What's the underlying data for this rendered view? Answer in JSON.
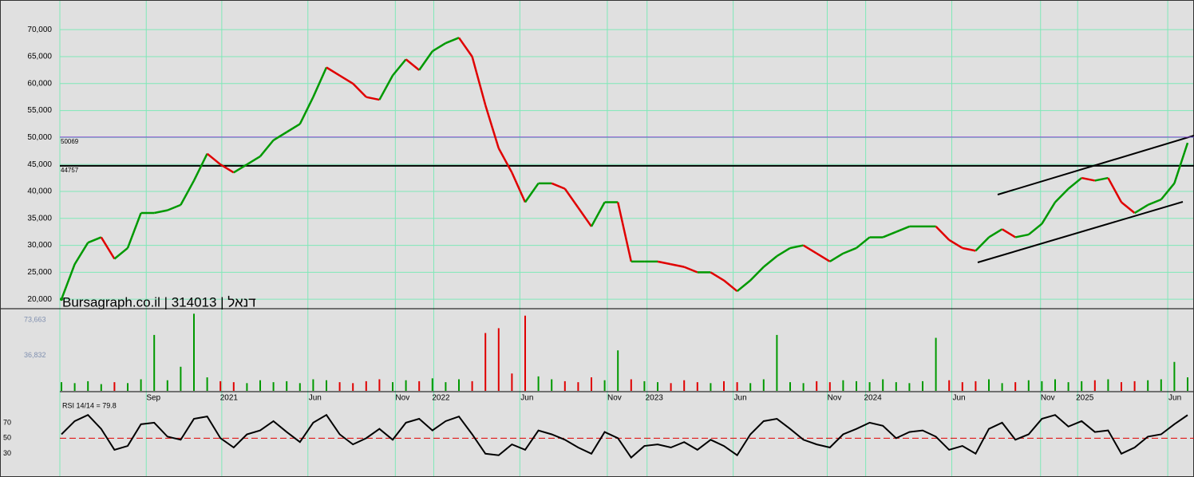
{
  "chart_data": {
    "type": "candle-line",
    "title": "Bursagraph.co.il | 314013 | דנאל",
    "up_color": "#009900",
    "down_color": "#e00000",
    "grid_color": "#7fe8b8",
    "values": [
      20000,
      26500,
      30500,
      31500,
      27500,
      29500,
      36000,
      36000,
      36500,
      37500,
      42000,
      47000,
      45000,
      43500,
      45000,
      46500,
      49500,
      51000,
      52500,
      57500,
      63000,
      61500,
      60000,
      57500,
      57000,
      61500,
      64500,
      62500,
      66000,
      67500,
      68500,
      65000,
      56000,
      48000,
      43500,
      38000,
      41500,
      41500,
      40500,
      37000,
      33500,
      38000,
      38000,
      27000,
      27000,
      27000,
      26500,
      26000,
      25000,
      25000,
      23500,
      21500,
      23500,
      26000,
      28000,
      29500,
      30000,
      28500,
      27000,
      28500,
      29500,
      31500,
      31500,
      32500,
      33500,
      33500,
      33500,
      31000,
      29500,
      29000,
      31500,
      33000,
      31500,
      32000,
      34000,
      38000,
      40500,
      42500,
      42000,
      42500,
      38000,
      36000,
      37500,
      38500,
      41500,
      49000
    ],
    "xlim": [
      0,
      85
    ],
    "xticks": [
      {
        "value": 6.4,
        "label": "Sep"
      },
      {
        "value": 12.1,
        "label": "2021"
      },
      {
        "value": 18.6,
        "label": "Jun"
      },
      {
        "value": 25.2,
        "label": "Nov"
      },
      {
        "value": 28.1,
        "label": "2022"
      },
      {
        "value": 34.6,
        "label": "Jun"
      },
      {
        "value": 41.2,
        "label": "Nov"
      },
      {
        "value": 44.2,
        "label": "2023"
      },
      {
        "value": 50.7,
        "label": "Jun"
      },
      {
        "value": 57.8,
        "label": "Nov"
      },
      {
        "value": 60.7,
        "label": "2024"
      },
      {
        "value": 67.2,
        "label": "Jun"
      },
      {
        "value": 73.9,
        "label": "Nov"
      },
      {
        "value": 76.7,
        "label": "2025"
      },
      {
        "value": 83.5,
        "label": "Jun"
      }
    ],
    "ylim": [
      18400,
      75500
    ],
    "yticks": [
      {
        "value": 20000,
        "label": "20,000"
      },
      {
        "value": 25000,
        "label": "25,000"
      },
      {
        "value": 30000,
        "label": "30,000"
      },
      {
        "value": 35000,
        "label": "35,000"
      },
      {
        "value": 40000,
        "label": "40,000"
      },
      {
        "value": 45000,
        "label": "45,000"
      },
      {
        "value": 50000,
        "label": "50,000"
      },
      {
        "value": 55000,
        "label": "55,000"
      },
      {
        "value": 60000,
        "label": "60,000"
      },
      {
        "value": 65000,
        "label": "65,000"
      },
      {
        "value": 70000,
        "label": "70,000"
      }
    ],
    "levels": [
      {
        "value": 50069,
        "color": "#7b3fd0"
      },
      {
        "value": 44757,
        "color": "#000000"
      }
    ],
    "volume": {
      "values": [
        9000,
        8000,
        10000,
        7000,
        9000,
        8000,
        12000,
        58000,
        11000,
        25000,
        80000,
        14000,
        10000,
        9000,
        8000,
        11000,
        9000,
        10000,
        8000,
        12000,
        11000,
        9000,
        8000,
        10000,
        12000,
        9000,
        11000,
        10000,
        13000,
        9000,
        12000,
        10000,
        60000,
        65000,
        18000,
        78000,
        15000,
        12000,
        10000,
        9000,
        14000,
        11000,
        42000,
        12000,
        10000,
        9000,
        8000,
        11000,
        9000,
        8000,
        10000,
        9000,
        8000,
        12000,
        58000,
        9000,
        8000,
        10000,
        9000,
        11000,
        10000,
        9000,
        12000,
        9000,
        8000,
        10000,
        55000,
        11000,
        9000,
        10000,
        12000,
        8000,
        9000,
        11000,
        10000,
        12000,
        9000,
        10000,
        11000,
        12000,
        9000,
        10000,
        11000,
        12000,
        30000,
        14000
      ],
      "ylim": [
        0,
        84400
      ],
      "yticks": [
        {
          "value": 36832,
          "label": "36,832"
        },
        {
          "value": 73663,
          "label": "73,663"
        }
      ],
      "tick_color": "#8090b0"
    },
    "rsi": {
      "label": "RSI 14/14 = 79.8",
      "values": [
        55,
        72,
        80,
        62,
        35,
        40,
        68,
        70,
        52,
        48,
        75,
        78,
        50,
        38,
        55,
        60,
        72,
        58,
        45,
        70,
        80,
        55,
        42,
        50,
        62,
        48,
        70,
        75,
        60,
        72,
        78,
        55,
        30,
        28,
        42,
        35,
        60,
        55,
        48,
        38,
        30,
        58,
        50,
        25,
        40,
        42,
        38,
        45,
        35,
        48,
        40,
        28,
        55,
        72,
        75,
        62,
        48,
        42,
        38,
        55,
        62,
        70,
        66,
        50,
        58,
        60,
        52,
        35,
        40,
        30,
        62,
        70,
        48,
        55,
        75,
        80,
        65,
        72,
        58,
        60,
        30,
        38,
        52,
        55,
        68,
        79.8
      ],
      "ylim": [
        2,
        109
      ],
      "yticks": [
        30,
        50,
        70
      ],
      "reference": 50,
      "reference_color": "#e00000"
    }
  }
}
